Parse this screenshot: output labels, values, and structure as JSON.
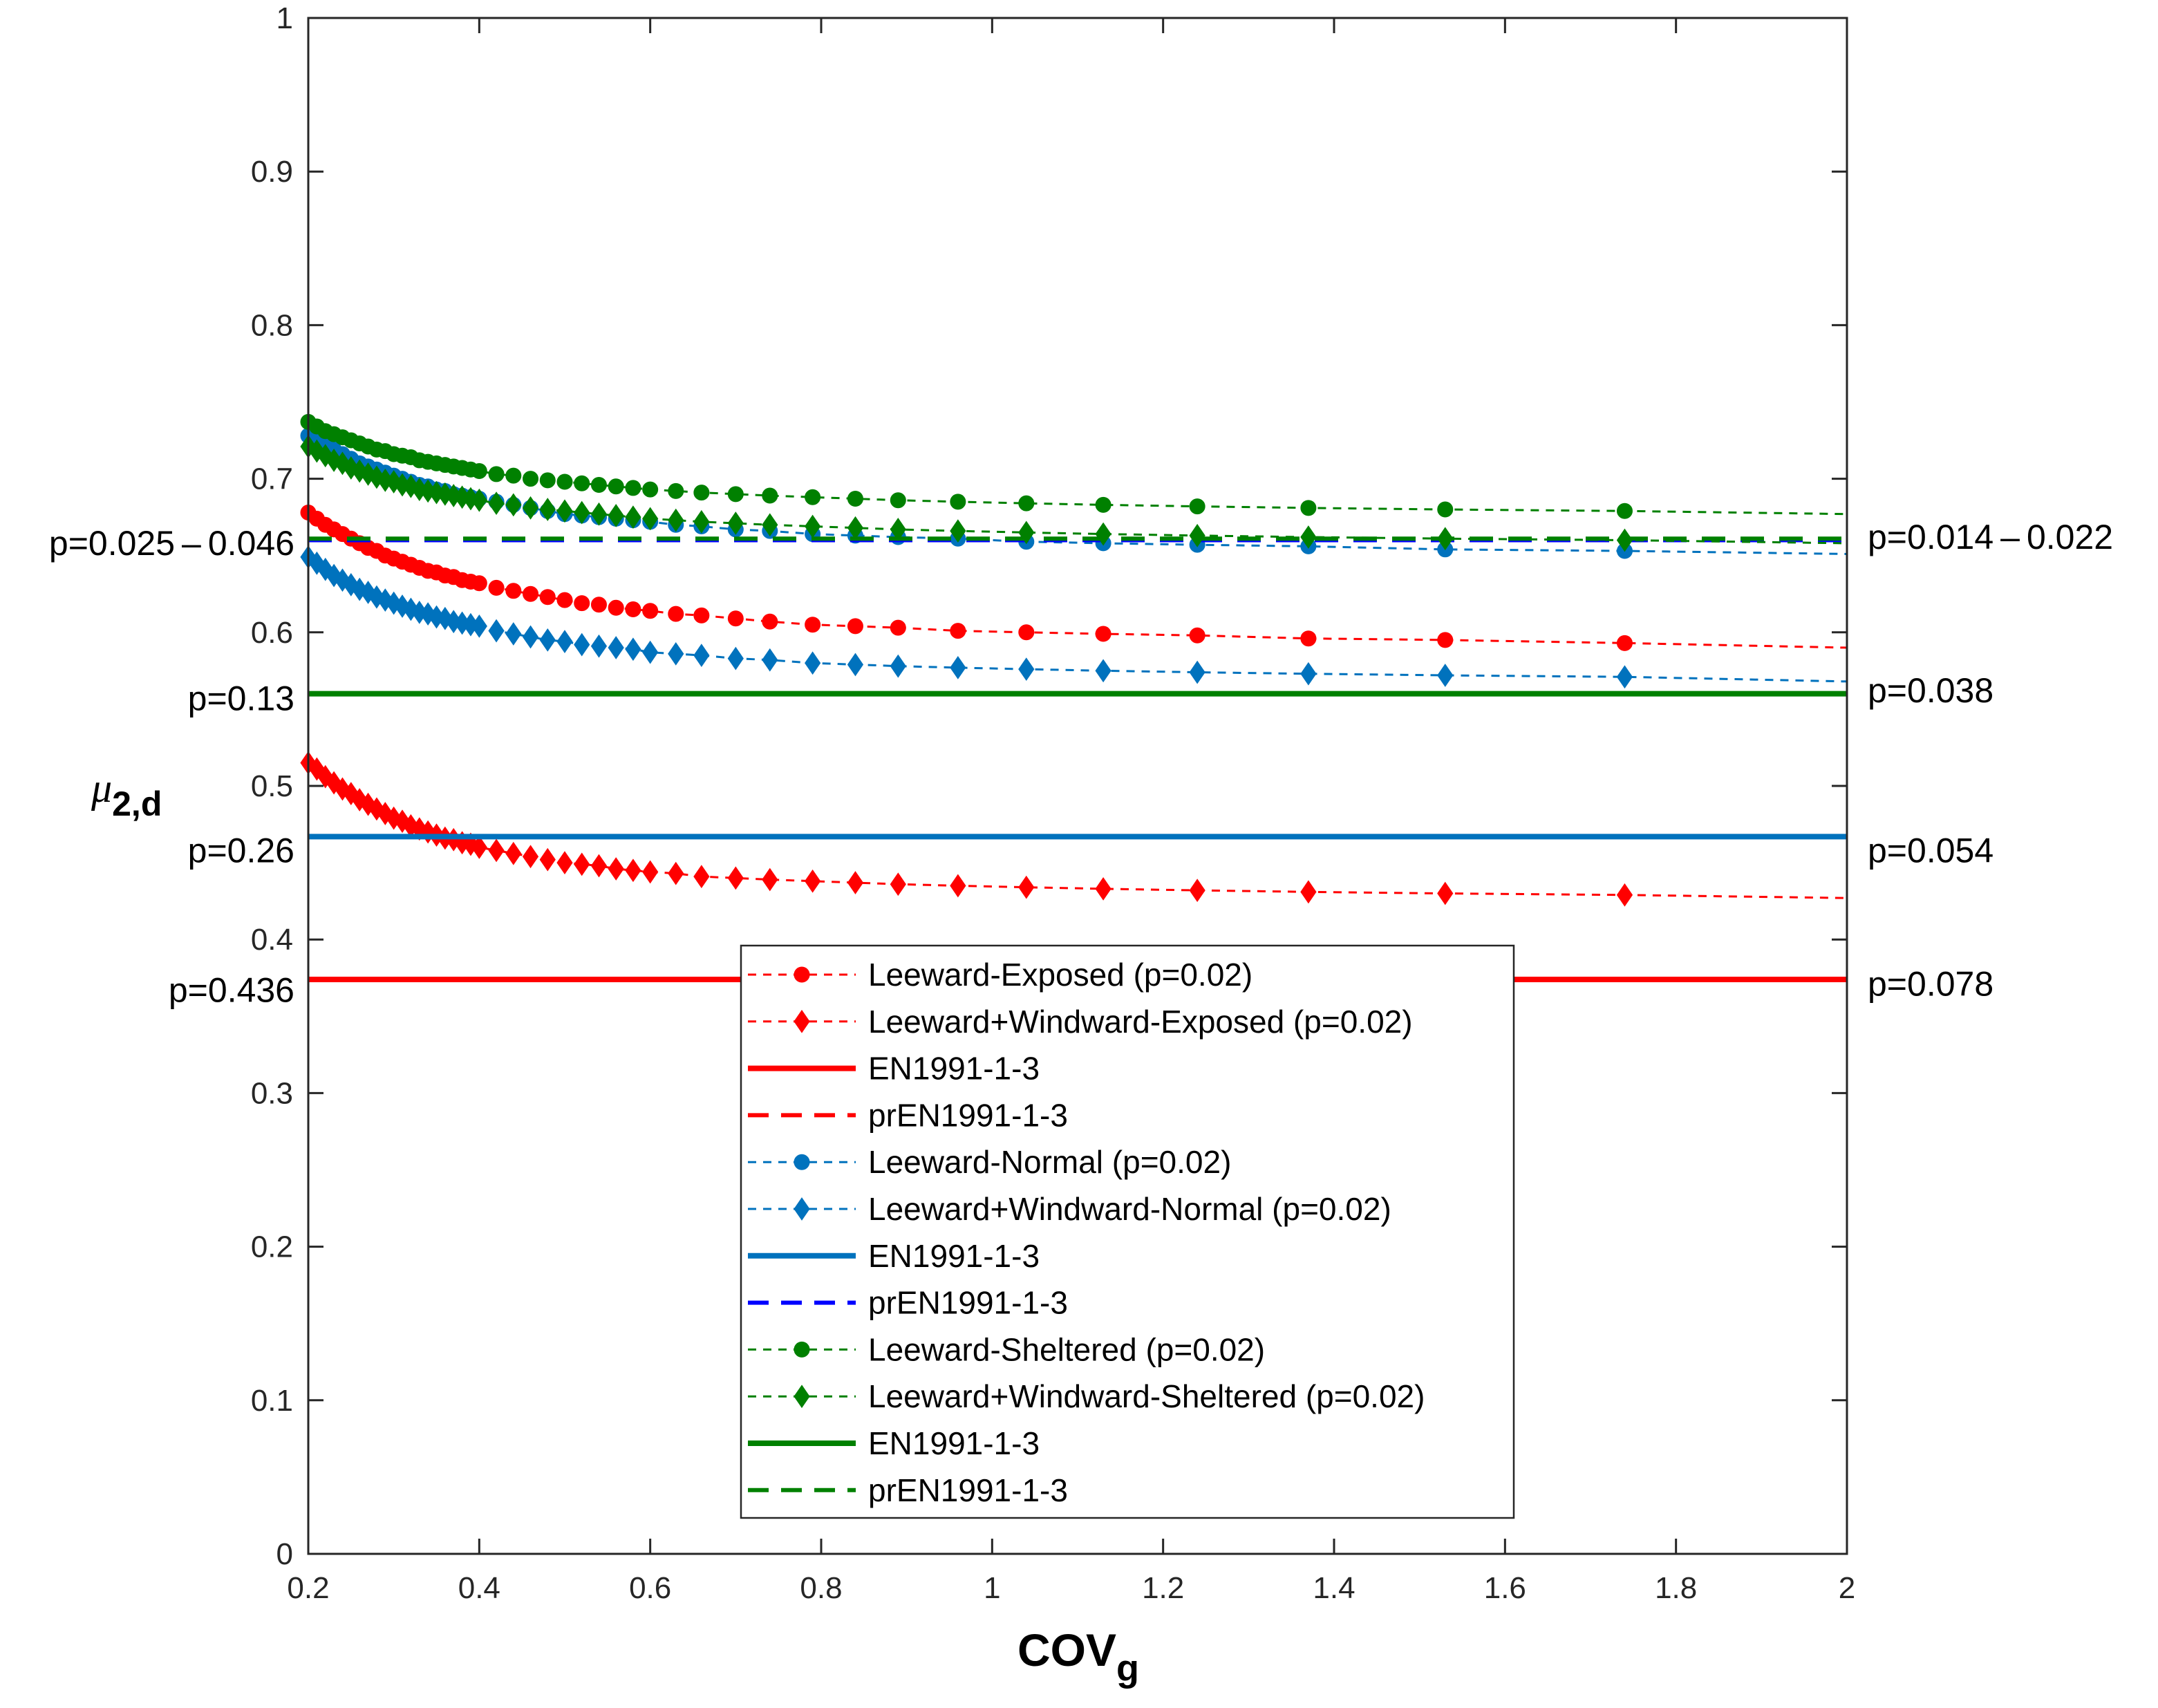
{
  "chart_data": {
    "type": "line",
    "title": "",
    "xlabel": "COV",
    "xlabel_sub": "g",
    "ylabel": "μ",
    "ylabel_sub": "2,d",
    "xlim": [
      0.2,
      2
    ],
    "ylim": [
      0,
      1
    ],
    "xticks": [
      0.2,
      0.4,
      0.6,
      0.8,
      1,
      1.2,
      1.4,
      1.6,
      1.8,
      2
    ],
    "yticks": [
      0,
      0.1,
      0.2,
      0.3,
      0.4,
      0.5,
      0.6,
      0.7,
      0.8,
      0.9,
      1
    ],
    "xtick_labels": [
      "0.2",
      "0.4",
      "0.6",
      "0.8",
      "1",
      "1.2",
      "1.4",
      "1.6",
      "1.8",
      "2"
    ],
    "ytick_labels": [
      "0",
      "0.1",
      "0.2",
      "0.3",
      "0.4",
      "0.5",
      "0.6",
      "0.7",
      "0.8",
      "0.9",
      "1"
    ],
    "grid": false,
    "legend_position": "bottom-center",
    "marker_x": [
      0.2,
      0.21,
      0.22,
      0.23,
      0.24,
      0.25,
      0.26,
      0.27,
      0.28,
      0.29,
      0.3,
      0.31,
      0.32,
      0.33,
      0.34,
      0.35,
      0.36,
      0.37,
      0.38,
      0.39,
      0.4,
      0.42,
      0.44,
      0.46,
      0.48,
      0.5,
      0.52,
      0.54,
      0.56,
      0.58,
      0.6,
      0.63,
      0.66,
      0.7,
      0.74,
      0.79,
      0.84,
      0.89,
      0.96,
      1.04,
      1.13,
      1.24,
      1.37,
      1.53,
      1.74
    ],
    "series": [
      {
        "name": "Leeward-Exposed (p=0.02)",
        "color": "#ff0000",
        "style": "dashed",
        "marker": "circle",
        "values": [
          0.678,
          0.674,
          0.67,
          0.667,
          0.664,
          0.661,
          0.658,
          0.655,
          0.653,
          0.65,
          0.648,
          0.646,
          0.644,
          0.642,
          0.64,
          0.639,
          0.637,
          0.636,
          0.634,
          0.633,
          0.632,
          0.629,
          0.627,
          0.625,
          0.623,
          0.621,
          0.619,
          0.618,
          0.616,
          0.615,
          0.614,
          0.612,
          0.611,
          0.609,
          0.607,
          0.605,
          0.604,
          0.603,
          0.601,
          0.6,
          0.599,
          0.598,
          0.596,
          0.595,
          0.593
        ],
        "end_value": 0.59
      },
      {
        "name": "Leeward+Windward-Exposed (p=0.02)",
        "color": "#ff0000",
        "style": "dashed",
        "marker": "diamond",
        "values": [
          0.515,
          0.511,
          0.506,
          0.502,
          0.498,
          0.495,
          0.491,
          0.488,
          0.485,
          0.482,
          0.479,
          0.477,
          0.474,
          0.472,
          0.47,
          0.468,
          0.466,
          0.465,
          0.463,
          0.462,
          0.46,
          0.458,
          0.456,
          0.454,
          0.452,
          0.45,
          0.449,
          0.448,
          0.446,
          0.445,
          0.444,
          0.443,
          0.441,
          0.44,
          0.439,
          0.438,
          0.437,
          0.436,
          0.435,
          0.434,
          0.433,
          0.432,
          0.431,
          0.43,
          0.429
        ],
        "end_value": 0.427
      },
      {
        "name": "EN1991-1-3",
        "color": "#ff0000",
        "style": "solid",
        "constant": 0.374
      },
      {
        "name": "prEN1991-1-3",
        "color": "#ff0000",
        "style": "dashed",
        "legend_only": true
      },
      {
        "name": "Leeward-Normal (p=0.02)",
        "color": "#0072bd",
        "style": "dashed",
        "marker": "circle",
        "values": [
          0.728,
          0.725,
          0.722,
          0.719,
          0.716,
          0.713,
          0.71,
          0.708,
          0.706,
          0.704,
          0.702,
          0.7,
          0.698,
          0.696,
          0.695,
          0.693,
          0.692,
          0.69,
          0.689,
          0.688,
          0.687,
          0.685,
          0.683,
          0.681,
          0.679,
          0.677,
          0.676,
          0.675,
          0.674,
          0.673,
          0.672,
          0.67,
          0.669,
          0.667,
          0.666,
          0.664,
          0.663,
          0.662,
          0.661,
          0.659,
          0.658,
          0.657,
          0.656,
          0.654,
          0.653
        ],
        "end_value": 0.651
      },
      {
        "name": "Leeward+Windward-Normal (p=0.02)",
        "color": "#0072bd",
        "style": "dashed",
        "marker": "diamond",
        "values": [
          0.649,
          0.645,
          0.641,
          0.637,
          0.634,
          0.631,
          0.628,
          0.626,
          0.623,
          0.621,
          0.619,
          0.617,
          0.615,
          0.613,
          0.612,
          0.61,
          0.609,
          0.607,
          0.606,
          0.605,
          0.604,
          0.601,
          0.599,
          0.597,
          0.595,
          0.594,
          0.592,
          0.591,
          0.59,
          0.589,
          0.587,
          0.586,
          0.585,
          0.583,
          0.582,
          0.58,
          0.579,
          0.578,
          0.577,
          0.576,
          0.575,
          0.574,
          0.573,
          0.572,
          0.571
        ],
        "end_value": 0.568
      },
      {
        "name": "EN1991-1-3",
        "color": "#0072bd",
        "style": "solid",
        "constant": 0.467
      },
      {
        "name": "prEN1991-1-3",
        "color": "#0000ff",
        "style": "dashed",
        "constant": 0.66
      },
      {
        "name": "Leeward-Sheltered (p=0.02)",
        "color": "#008000",
        "style": "dashed",
        "marker": "circle",
        "values": [
          0.737,
          0.734,
          0.731,
          0.729,
          0.727,
          0.725,
          0.723,
          0.721,
          0.719,
          0.718,
          0.716,
          0.715,
          0.714,
          0.712,
          0.711,
          0.71,
          0.709,
          0.708,
          0.707,
          0.706,
          0.705,
          0.703,
          0.702,
          0.7,
          0.699,
          0.698,
          0.697,
          0.696,
          0.695,
          0.694,
          0.693,
          0.692,
          0.691,
          0.69,
          0.689,
          0.688,
          0.687,
          0.686,
          0.685,
          0.684,
          0.683,
          0.682,
          0.681,
          0.68,
          0.679
        ],
        "end_value": 0.677
      },
      {
        "name": "Leeward+Windward-Sheltered (p=0.02)",
        "color": "#008000",
        "style": "dashed",
        "marker": "diamond",
        "values": [
          0.721,
          0.718,
          0.715,
          0.712,
          0.71,
          0.707,
          0.705,
          0.703,
          0.701,
          0.699,
          0.698,
          0.696,
          0.695,
          0.693,
          0.692,
          0.691,
          0.69,
          0.689,
          0.688,
          0.687,
          0.686,
          0.684,
          0.683,
          0.681,
          0.68,
          0.679,
          0.678,
          0.677,
          0.676,
          0.675,
          0.674,
          0.673,
          0.672,
          0.671,
          0.67,
          0.669,
          0.668,
          0.667,
          0.666,
          0.665,
          0.664,
          0.663,
          0.662,
          0.661,
          0.66
        ],
        "end_value": 0.658
      },
      {
        "name": "EN1991-1-3",
        "color": "#008000",
        "style": "solid",
        "constant": 0.56
      },
      {
        "name": "prEN1991-1-3",
        "color": "#008000",
        "style": "dashed",
        "constant": 0.661
      }
    ],
    "annotations_left": [
      {
        "text": "p=0.025 – 0.046",
        "y": 0.658
      },
      {
        "text": "p=0.13",
        "y": 0.557
      },
      {
        "text": "p=0.26",
        "y": 0.458
      },
      {
        "text": "p=0.436",
        "y": 0.367
      }
    ],
    "annotations_right": [
      {
        "text": "p=0.014 – 0.022",
        "y": 0.662
      },
      {
        "text": "p=0.038",
        "y": 0.562
      },
      {
        "text": "p=0.054",
        "y": 0.458
      },
      {
        "text": "p=0.078",
        "y": 0.371
      }
    ]
  }
}
